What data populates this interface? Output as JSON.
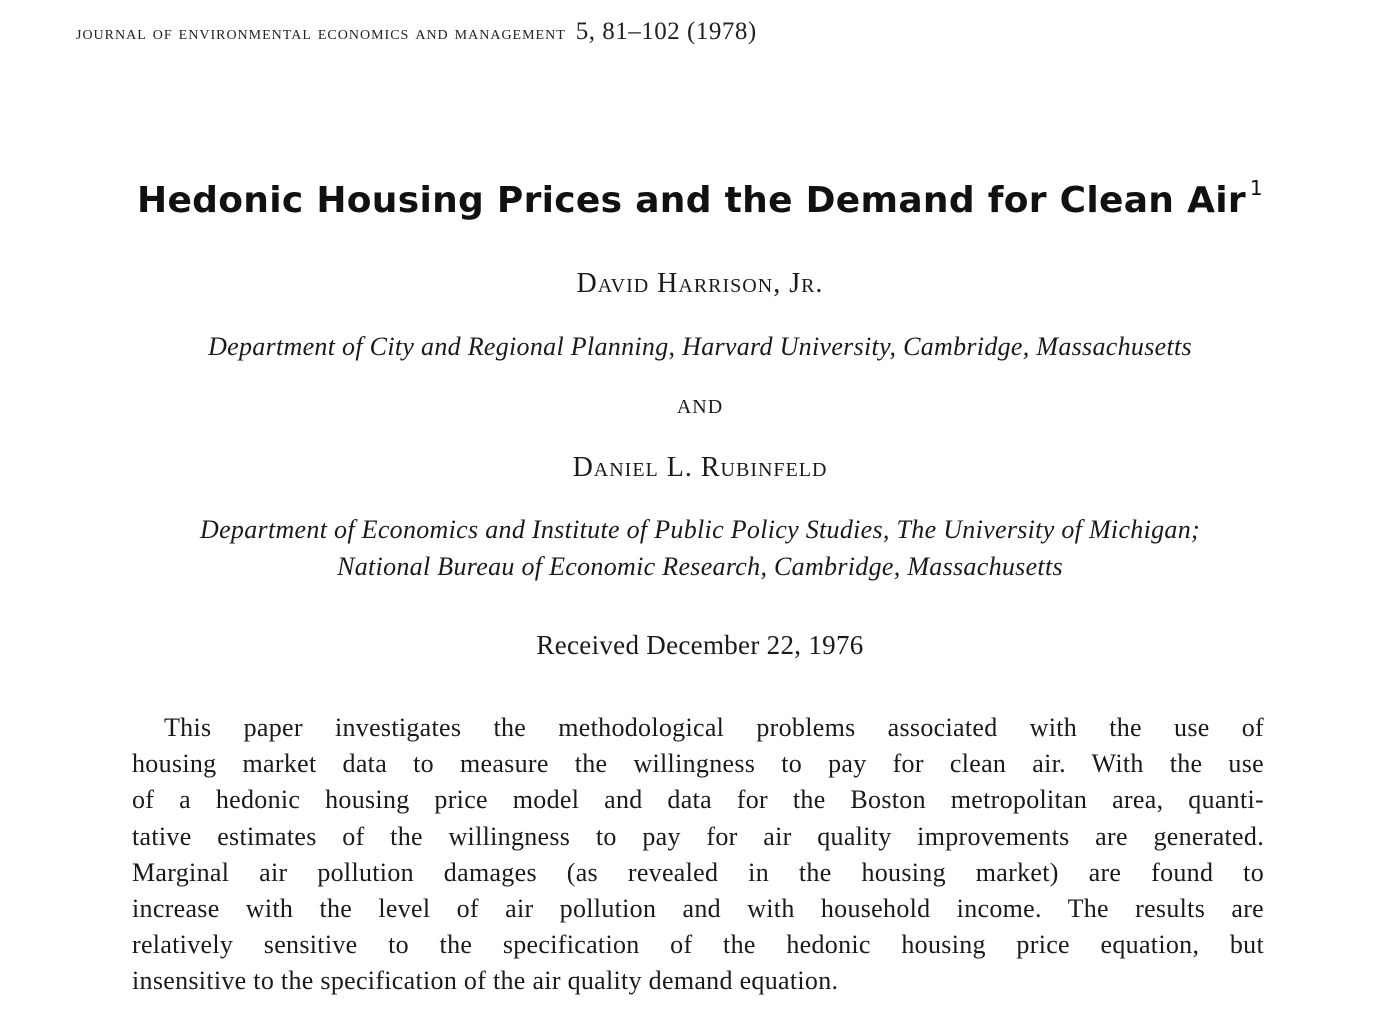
{
  "header": {
    "journal": "JOURNAL OF ENVIRONMENTAL ECONOMICS AND MANAGEMENT",
    "citation": "5, 81–102 (1978)"
  },
  "title": {
    "text": "Hedonic Housing Prices and the Demand for Clean Air",
    "footnote_mark": "1"
  },
  "authors": [
    {
      "name": "David Harrison, Jr.",
      "affiliation_lines": [
        "Department of City and Regional Planning, Harvard University, Cambridge, Massachusetts"
      ]
    },
    {
      "name": "Daniel L. Rubinfeld",
      "affiliation_lines": [
        "Department of Economics and Institute of Public Policy Studies, The University of Michigan;",
        "National Bureau of Economic Research, Cambridge, Massachusetts"
      ]
    }
  ],
  "conjunction": "AND",
  "received": "Received December 22, 1976",
  "abstract": {
    "lines": [
      "This paper investigates the methodological problems associated with the use of",
      "housing market data to measure the willingness to pay for clean air. With the use",
      "of a hedonic housing price model and data for the Boston metropolitan area, quanti-",
      "tative estimates of the willingness to pay for air quality improvements are generated.",
      "Marginal air pollution damages (as revealed in the housing market) are found to",
      "increase with the level of air pollution and with household income. The results are",
      "relatively sensitive to the specification of the hedonic housing price equation, but",
      "insensitive to the specification of the air quality demand equation."
    ]
  }
}
